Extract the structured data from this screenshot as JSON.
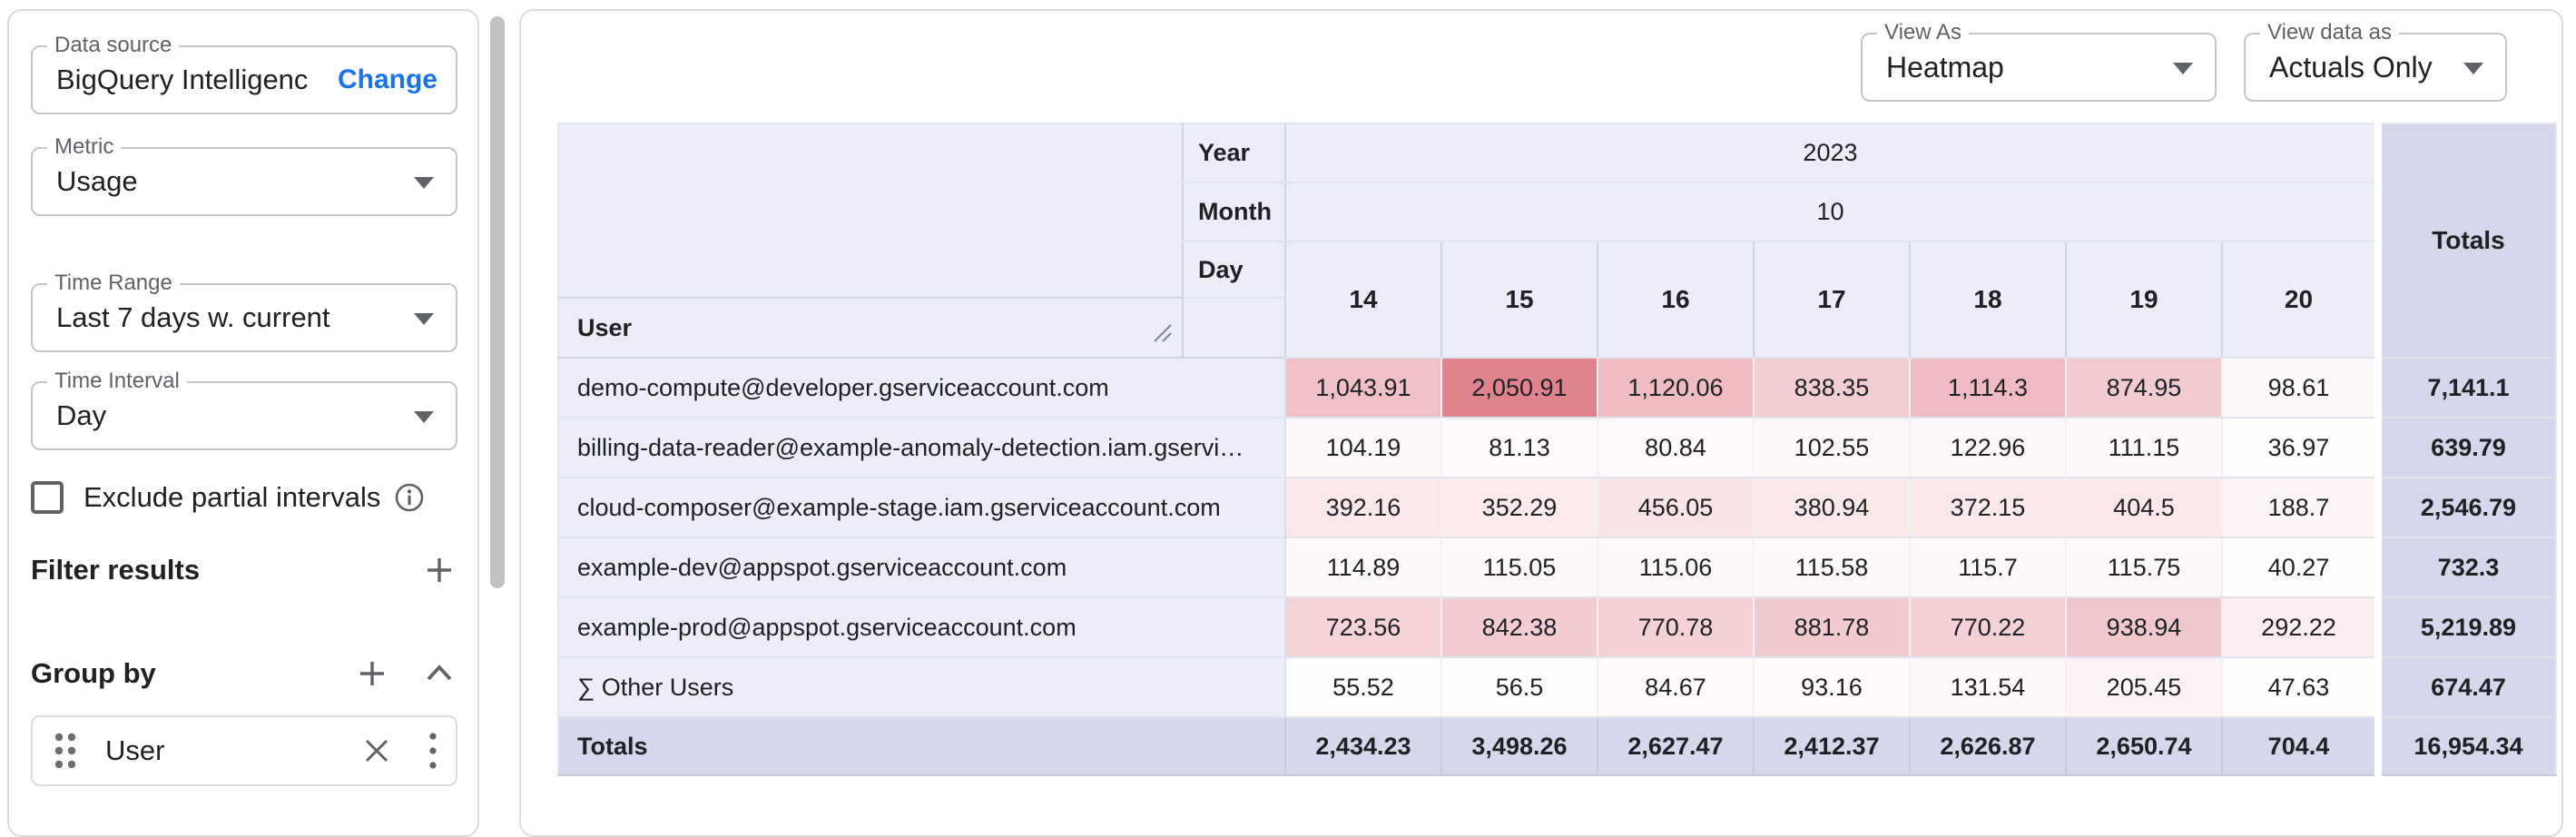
{
  "colors": {
    "accent_blue": "#1A73E8",
    "header_bg": "#ECEDF8",
    "totals_bg": "#D5D7EA",
    "heat_max_color": "#DF848E",
    "heat_min_color": "#FFFFFF"
  },
  "sidebar": {
    "data_source": {
      "label": "Data source",
      "value": "BigQuery Intelligenc",
      "action": "Change"
    },
    "metric": {
      "label": "Metric",
      "value": "Usage"
    },
    "time_range": {
      "label": "Time Range",
      "value": "Last 7 days w. current"
    },
    "time_interval": {
      "label": "Time Interval",
      "value": "Day"
    },
    "exclude_partial": {
      "label": "Exclude partial intervals",
      "checked": false
    },
    "filter_results": {
      "heading": "Filter results"
    },
    "group_by": {
      "heading": "Group by",
      "chips": [
        {
          "label": "User"
        }
      ]
    }
  },
  "toolbar": {
    "view_as": {
      "label": "View As",
      "value": "Heatmap"
    },
    "view_data_as": {
      "label": "View data as",
      "value": "Actuals Only"
    }
  },
  "table": {
    "header": {
      "year_label": "Year",
      "year_value": "2023",
      "month_label": "Month",
      "month_value": "10",
      "day_label": "Day",
      "user_label": "User",
      "totals_label": "Totals",
      "days": [
        "14",
        "15",
        "16",
        "17",
        "18",
        "19",
        "20"
      ]
    },
    "rows": [
      {
        "user": "demo-compute@developer.gserviceaccount.com",
        "values": [
          "1,043.91",
          "2,050.91",
          "1,120.06",
          "838.35",
          "1,114.3",
          "874.95",
          "98.61"
        ],
        "total": "7,141.1"
      },
      {
        "user": "billing-data-reader@example-anomaly-detection.iam.gservi…",
        "values": [
          "104.19",
          "81.13",
          "80.84",
          "102.55",
          "122.96",
          "111.15",
          "36.97"
        ],
        "total": "639.79"
      },
      {
        "user": "cloud-composer@example-stage.iam.gserviceaccount.com",
        "values": [
          "392.16",
          "352.29",
          "456.05",
          "380.94",
          "372.15",
          "404.5",
          "188.7"
        ],
        "total": "2,546.79"
      },
      {
        "user": "example-dev@appspot.gserviceaccount.com",
        "values": [
          "114.89",
          "115.05",
          "115.06",
          "115.58",
          "115.7",
          "115.75",
          "40.27"
        ],
        "total": "732.3"
      },
      {
        "user": "example-prod@appspot.gserviceaccount.com",
        "values": [
          "723.56",
          "842.38",
          "770.78",
          "881.78",
          "770.22",
          "938.94",
          "292.22"
        ],
        "total": "5,219.89"
      },
      {
        "user": "∑ Other Users",
        "values": [
          "55.52",
          "56.5",
          "84.67",
          "93.16",
          "131.54",
          "205.45",
          "47.63"
        ],
        "total": "674.47"
      }
    ],
    "totals_row": {
      "label": "Totals",
      "values": [
        "2,434.23",
        "3,498.26",
        "2,627.47",
        "2,412.37",
        "2,626.87",
        "2,650.74",
        "704.4"
      ],
      "total": "16,954.34"
    },
    "heatmap": {
      "max": 2050.91,
      "max_color": "#DF848E",
      "min_color": "#FFFFFF"
    }
  }
}
